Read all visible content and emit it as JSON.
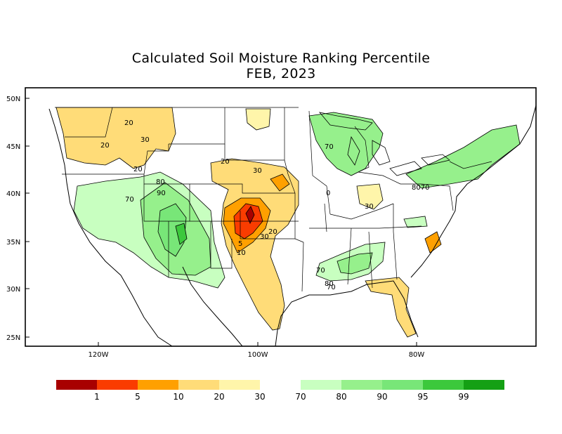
{
  "title": "Calculated Soil Moisture Ranking Percentile",
  "subtitle": "FEB, 2023",
  "lat_ticks": [
    "50N",
    "45N",
    "40N",
    "35N",
    "30N",
    "25N"
  ],
  "lon_ticks": [
    "120W",
    "100W",
    "80W"
  ],
  "legend": {
    "dry_colors": [
      "#a80000",
      "#fa3c00",
      "#ffa000",
      "#ffdc78",
      "#fff5aa"
    ],
    "wet_colors": [
      "#c8ffc0",
      "#96f08c",
      "#78e678",
      "#3cc83c",
      "#14a014"
    ],
    "dry_labels": [
      "1",
      "5",
      "10",
      "20",
      "30"
    ],
    "wet_labels": [
      "70",
      "80",
      "90",
      "95",
      "99"
    ]
  },
  "contour_labels": [
    "20",
    "30",
    "20",
    "20",
    "30",
    "20",
    "80",
    "90",
    "70",
    "70",
    "0",
    "30",
    "8070",
    "5",
    "10",
    "30",
    "20",
    "70",
    "80",
    "70"
  ]
}
